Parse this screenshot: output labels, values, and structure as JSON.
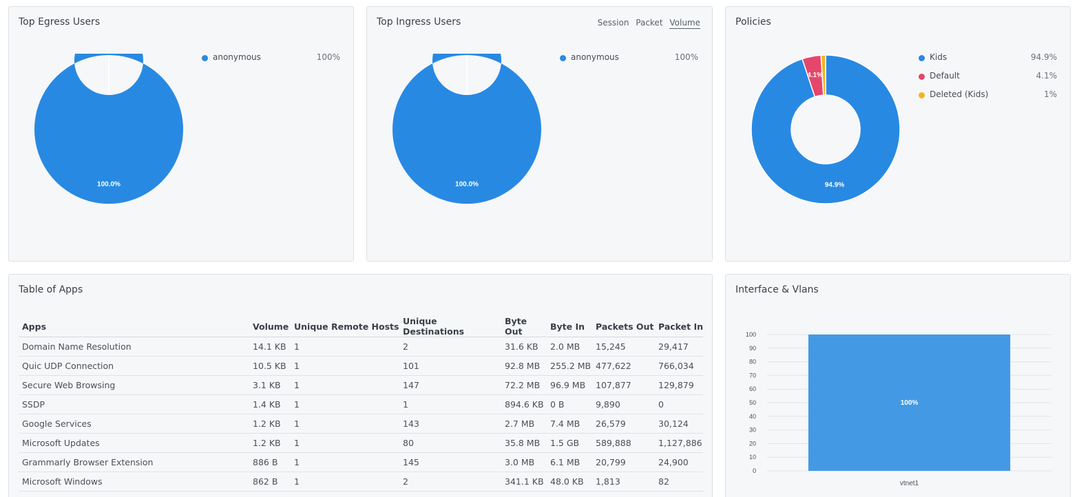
{
  "egress": {
    "title": "Top Egress Users",
    "legend": [
      {
        "label": "anonymous",
        "value": "100%",
        "color": "#2889e3"
      }
    ],
    "slice_labels": [
      "100.0%"
    ]
  },
  "ingress": {
    "title": "Top Ingress Users",
    "tabs": [
      "Session",
      "Packet",
      "Volume"
    ],
    "active_tab": "Volume",
    "legend": [
      {
        "label": "anonymous",
        "value": "100%",
        "color": "#2889e3"
      }
    ],
    "slice_labels": [
      "100.0%"
    ]
  },
  "policies": {
    "title": "Policies",
    "legend": [
      {
        "label": "Kids",
        "value": "94.9%",
        "color": "#2889e3"
      },
      {
        "label": "Default",
        "value": "4.1%",
        "color": "#e5466c"
      },
      {
        "label": "Deleted (Kids)",
        "value": "1%",
        "color": "#f3b520"
      }
    ],
    "slice_labels": [
      "94.9%",
      "4.1%"
    ]
  },
  "apps": {
    "title": "Table of Apps",
    "columns": [
      "Apps",
      "Volume",
      "Unique Remote Hosts",
      "Unique Destinations",
      "Byte Out",
      "Byte In",
      "Packets Out",
      "Packet In"
    ],
    "rows": [
      [
        "Domain Name Resolution",
        "14.1 KB",
        "1",
        "2",
        "31.6 KB",
        "2.0 MB",
        "15,245",
        "29,417"
      ],
      [
        "Quic UDP Connection",
        "10.5 KB",
        "1",
        "101",
        "92.8 MB",
        "255.2 MB",
        "477,622",
        "766,034"
      ],
      [
        "Secure Web Browsing",
        "3.1 KB",
        "1",
        "147",
        "72.2 MB",
        "96.9 MB",
        "107,877",
        "129,879"
      ],
      [
        "SSDP",
        "1.4 KB",
        "1",
        "1",
        "894.6 KB",
        "0 B",
        "9,890",
        "0"
      ],
      [
        "Google Services",
        "1.2 KB",
        "1",
        "143",
        "2.7 MB",
        "7.4 MB",
        "26,579",
        "30,124"
      ],
      [
        "Microsoft Updates",
        "1.2 KB",
        "1",
        "80",
        "35.8 MB",
        "1.5 GB",
        "589,888",
        "1,127,886"
      ],
      [
        "Grammarly Browser Extension",
        "886 B",
        "1",
        "145",
        "3.0 MB",
        "6.1 MB",
        "20,799",
        "24,900"
      ],
      [
        "Microsoft Windows",
        "862 B",
        "1",
        "2",
        "341.1 KB",
        "48.0 KB",
        "1,813",
        "82"
      ]
    ]
  },
  "vlans": {
    "title": "Interface & Vlans"
  },
  "chart_data": [
    {
      "type": "pie",
      "title": "Top Egress Users",
      "categories": [
        "anonymous"
      ],
      "values": [
        100.0
      ],
      "colors": [
        "#2889e3"
      ]
    },
    {
      "type": "pie",
      "title": "Top Ingress Users",
      "categories": [
        "anonymous"
      ],
      "values": [
        100.0
      ],
      "colors": [
        "#2889e3"
      ]
    },
    {
      "type": "pie",
      "title": "Policies",
      "categories": [
        "Kids",
        "Default",
        "Deleted (Kids)"
      ],
      "values": [
        94.9,
        4.1,
        1.0
      ],
      "colors": [
        "#2889e3",
        "#e5466c",
        "#f3b520"
      ]
    },
    {
      "type": "bar",
      "title": "Interface & Vlans",
      "categories": [
        "vtnet1"
      ],
      "values": [
        100
      ],
      "data_labels": [
        "100%"
      ],
      "ylim": [
        0,
        100
      ],
      "yticks": [
        0,
        10,
        20,
        30,
        40,
        50,
        60,
        70,
        80,
        90,
        100
      ],
      "grid": true,
      "color": "#4499e5"
    }
  ]
}
